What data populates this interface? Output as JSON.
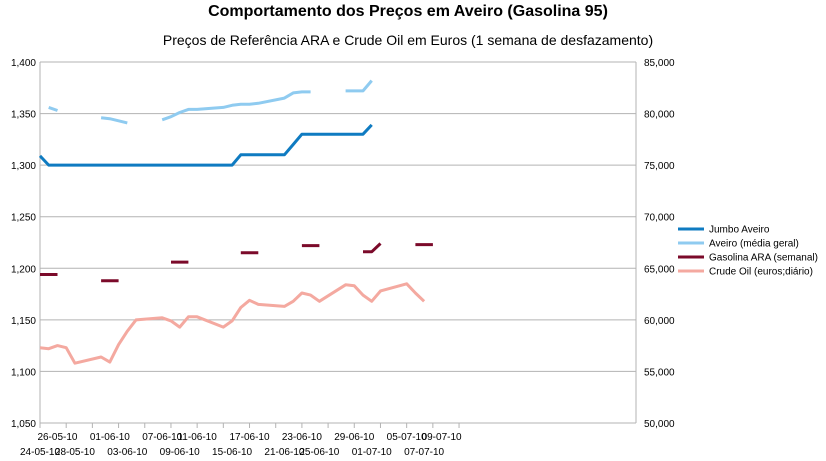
{
  "chart_data": {
    "type": "line",
    "title": "Comportamento dos Preços em Aveiro (Gasolina 95)",
    "subtitle": "Preços de Referência ARA e Crude Oil em Euros (1 semana de desfazamento)",
    "x_tick_labels_upper": [
      "26-05-10",
      "01-06-10",
      "07-06-10",
      "11-06-10",
      "17-06-10",
      "23-06-10",
      "29-06-10",
      "05-07-10",
      "09-07-10"
    ],
    "x_tick_labels_lower": [
      "24-05-10",
      "28-05-10",
      "03-06-10",
      "09-06-10",
      "15-06-10",
      "21-06-10",
      "25-06-10",
      "01-07-10",
      "07-07-10"
    ],
    "y_left": {
      "ylim": [
        1.05,
        1.4
      ],
      "ticks": [
        "1,050",
        "1,100",
        "1,150",
        "1,200",
        "1,250",
        "1,300",
        "1,350",
        "1,400"
      ]
    },
    "y_right": {
      "ylim": [
        50000,
        85000
      ],
      "ticks": [
        "50,000",
        "55,000",
        "60,000",
        "65,000",
        "70,000",
        "75,000",
        "80,000",
        "85,000"
      ]
    },
    "grid": "horizontal",
    "legend": "right",
    "series": [
      {
        "name": "Jumbo Aveiro",
        "axis": "left",
        "color": "#0f7bc1",
        "points": [
          [
            "24-05-10",
            1.309
          ],
          [
            "25-05-10",
            1.3
          ],
          [
            "26-05-10",
            1.3
          ],
          [
            "27-05-10",
            1.3
          ],
          [
            "28-05-10",
            1.3
          ],
          [
            "31-05-10",
            1.3
          ],
          [
            "01-06-10",
            1.3
          ],
          [
            "02-06-10",
            1.3
          ],
          [
            "03-06-10",
            1.3
          ],
          [
            "04-06-10",
            1.3
          ],
          [
            "07-06-10",
            1.3
          ],
          [
            "08-06-10",
            1.3
          ],
          [
            "09-06-10",
            1.3
          ],
          [
            "10-06-10",
            1.3
          ],
          [
            "11-06-10",
            1.3
          ],
          [
            "14-06-10",
            1.3
          ],
          [
            "15-06-10",
            1.3
          ],
          [
            "16-06-10",
            1.31
          ],
          [
            "17-06-10",
            1.31
          ],
          [
            "18-06-10",
            1.31
          ],
          [
            "21-06-10",
            1.31
          ],
          [
            "22-06-10",
            1.32
          ],
          [
            "23-06-10",
            1.33
          ],
          [
            "24-06-10",
            1.33
          ],
          [
            "25-06-10",
            1.33
          ],
          [
            "28-06-10",
            1.33
          ],
          [
            "29-06-10",
            1.33
          ],
          [
            "30-06-10",
            1.33
          ],
          [
            "01-07-10",
            1.339
          ]
        ]
      },
      {
        "name": "Aveiro (média geral)",
        "axis": "left",
        "color": "#8fcbf0",
        "points": [
          [
            "25-05-10",
            1.356
          ],
          [
            "26-05-10",
            1.353
          ],
          [
            "31-05-10",
            1.346
          ],
          [
            "01-06-10",
            1.345
          ],
          [
            "02-06-10",
            1.343
          ],
          [
            "03-06-10",
            1.341
          ],
          [
            "07-06-10",
            1.344
          ],
          [
            "08-06-10",
            1.347
          ],
          [
            "09-06-10",
            1.351
          ],
          [
            "10-06-10",
            1.354
          ],
          [
            "11-06-10",
            1.354
          ],
          [
            "14-06-10",
            1.356
          ],
          [
            "15-06-10",
            1.358
          ],
          [
            "16-06-10",
            1.359
          ],
          [
            "17-06-10",
            1.359
          ],
          [
            "18-06-10",
            1.36
          ],
          [
            "21-06-10",
            1.365
          ],
          [
            "22-06-10",
            1.37
          ],
          [
            "23-06-10",
            1.371
          ],
          [
            "24-06-10",
            1.371
          ],
          [
            "28-06-10",
            1.372
          ],
          [
            "29-06-10",
            1.372
          ],
          [
            "30-06-10",
            1.372
          ],
          [
            "01-07-10",
            1.382
          ]
        ]
      },
      {
        "name": "Gasolina ARA (semanal)",
        "axis": "right",
        "color": "#7b0a2a",
        "points": [
          [
            "24-05-10",
            64.4
          ],
          [
            "25-05-10",
            64.4
          ],
          [
            "26-05-10",
            64.4
          ],
          [
            "31-05-10",
            63.8
          ],
          [
            "01-06-10",
            63.8
          ],
          [
            "02-06-10",
            63.8
          ],
          [
            "08-06-10",
            65.6
          ],
          [
            "09-06-10",
            65.6
          ],
          [
            "10-06-10",
            65.6
          ],
          [
            "16-06-10",
            66.5
          ],
          [
            "17-06-10",
            66.5
          ],
          [
            "18-06-10",
            66.5
          ],
          [
            "23-06-10",
            67.2
          ],
          [
            "24-06-10",
            67.2
          ],
          [
            "25-06-10",
            67.2
          ],
          [
            "30-06-10",
            66.6
          ],
          [
            "01-07-10",
            66.6
          ],
          [
            "02-07-10",
            67.4
          ],
          [
            "06-07-10",
            67.3
          ],
          [
            "07-07-10",
            67.3
          ],
          [
            "08-07-10",
            67.3
          ]
        ]
      },
      {
        "name": "Crude Oil (euros;diário)",
        "axis": "right",
        "color": "#f4a9a0",
        "points": [
          [
            "24-05-10",
            57.3
          ],
          [
            "25-05-10",
            57.2
          ],
          [
            "26-05-10",
            57.5
          ],
          [
            "27-05-10",
            57.3
          ],
          [
            "28-05-10",
            55.8
          ],
          [
            "31-05-10",
            56.4
          ],
          [
            "01-06-10",
            55.9
          ],
          [
            "02-06-10",
            57.6
          ],
          [
            "03-06-10",
            58.9
          ],
          [
            "04-06-10",
            60.0
          ],
          [
            "07-06-10",
            60.2
          ],
          [
            "08-06-10",
            59.9
          ],
          [
            "09-06-10",
            59.3
          ],
          [
            "10-06-10",
            60.3
          ],
          [
            "11-06-10",
            60.3
          ],
          [
            "14-06-10",
            59.3
          ],
          [
            "15-06-10",
            59.9
          ],
          [
            "16-06-10",
            61.2
          ],
          [
            "17-06-10",
            61.9
          ],
          [
            "18-06-10",
            61.5
          ],
          [
            "21-06-10",
            61.3
          ],
          [
            "22-06-10",
            61.8
          ],
          [
            "23-06-10",
            62.6
          ],
          [
            "24-06-10",
            62.4
          ],
          [
            "25-06-10",
            61.8
          ],
          [
            "28-06-10",
            63.4
          ],
          [
            "29-06-10",
            63.3
          ],
          [
            "30-06-10",
            62.4
          ],
          [
            "01-07-10",
            61.8
          ],
          [
            "02-07-10",
            62.8
          ],
          [
            "05-07-10",
            63.5
          ],
          [
            "06-07-10",
            62.6
          ],
          [
            "07-07-10",
            61.8
          ]
        ]
      }
    ]
  }
}
